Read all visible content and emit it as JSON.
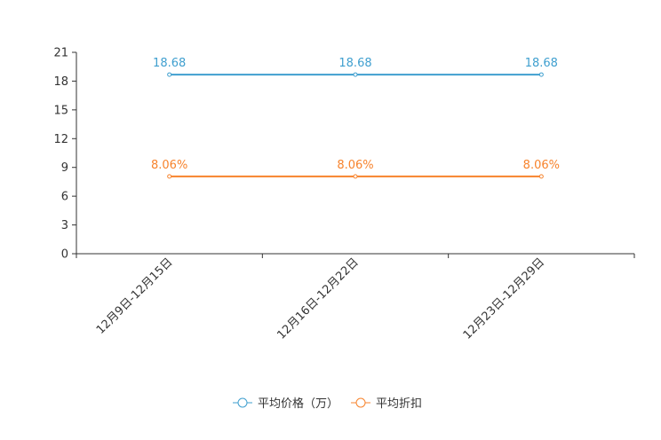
{
  "chart_data": {
    "type": "line",
    "title": "",
    "xlabel": "",
    "ylabel": "",
    "categories": [
      "12月9日-12月15日",
      "12月16日-12月22日",
      "12月23日-12月29日"
    ],
    "ylim": [
      0,
      21
    ],
    "yticks": [
      0,
      3,
      6,
      9,
      12,
      15,
      18,
      21
    ],
    "grid": false,
    "legend_position": "bottom-center",
    "series": [
      {
        "name": "平均价格（万）",
        "values": [
          18.68,
          18.68,
          18.68
        ],
        "labels": [
          "18.68",
          "18.68",
          "18.68"
        ],
        "color": "#3f9fcf"
      },
      {
        "name": "平均折扣",
        "values": [
          8.06,
          8.06,
          8.06
        ],
        "labels": [
          "8.06%",
          "8.06%",
          "8.06%"
        ],
        "color": "#f7832c"
      }
    ]
  }
}
